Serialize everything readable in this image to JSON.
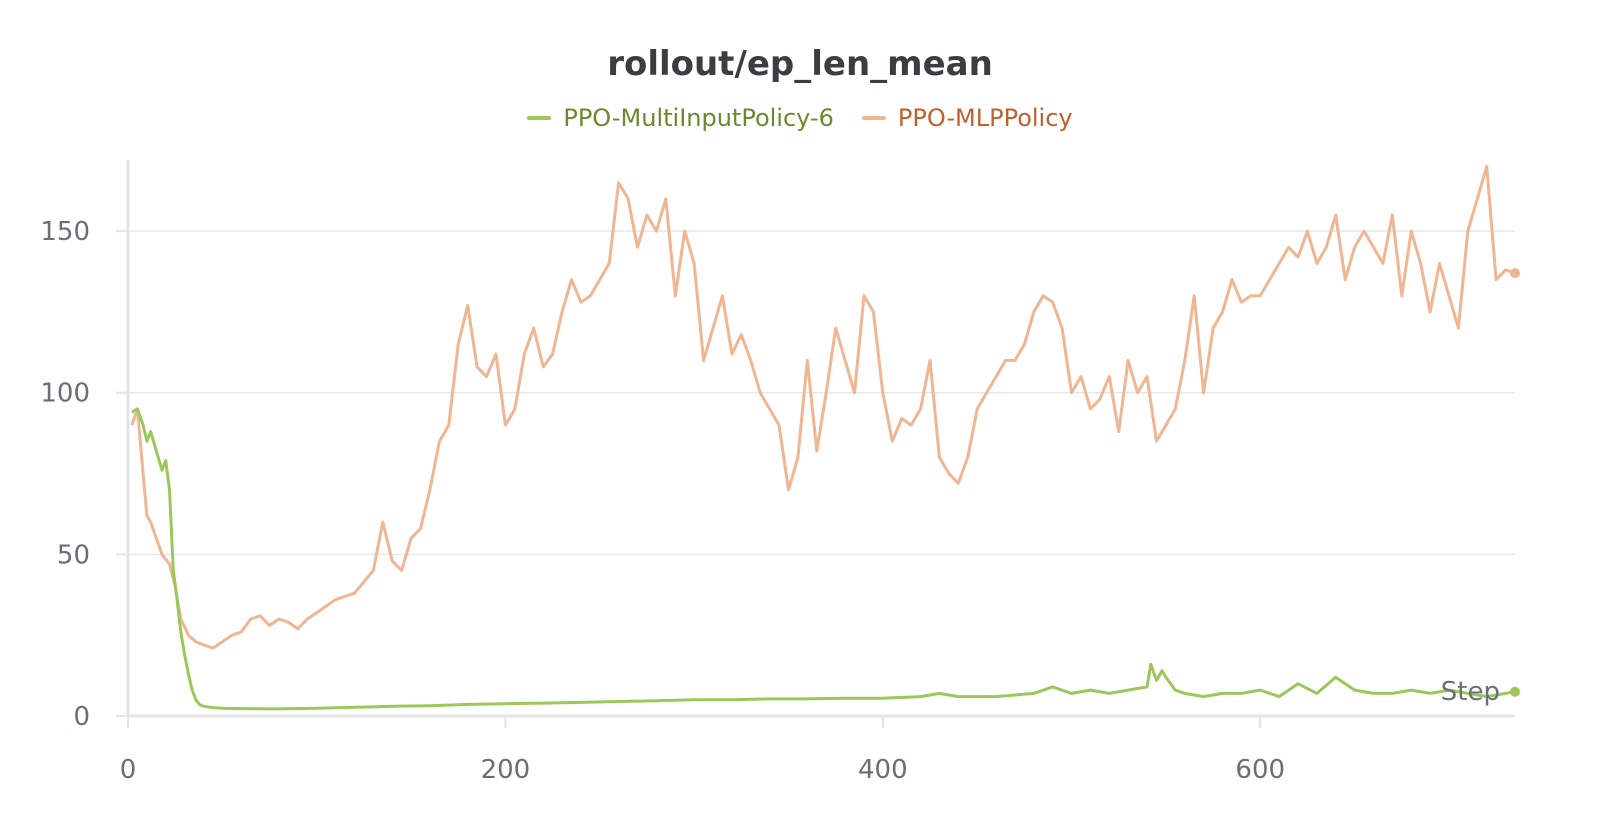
{
  "chart_data": {
    "type": "line",
    "title": "rollout/ep_len_mean",
    "xlabel": "Step",
    "ylabel": "",
    "xlim": [
      0,
      735
    ],
    "ylim": [
      0,
      172
    ],
    "xticks": [
      0,
      200,
      400,
      600
    ],
    "yticks": [
      0,
      50,
      100,
      150
    ],
    "grid": true,
    "legend_position": "top-center",
    "series": [
      {
        "name": "PPO-MultiInputPolicy-6",
        "color": "#9cc75a",
        "text_color": "#6a8a2e",
        "x": [
          2,
          5,
          8,
          10,
          12,
          14,
          16,
          18,
          20,
          22,
          24,
          26,
          28,
          30,
          32,
          34,
          36,
          38,
          40,
          45,
          50,
          60,
          80,
          100,
          120,
          140,
          160,
          180,
          200,
          220,
          240,
          260,
          280,
          300,
          320,
          340,
          360,
          380,
          400,
          420,
          430,
          440,
          460,
          480,
          490,
          500,
          510,
          520,
          530,
          540,
          542,
          545,
          548,
          550,
          555,
          560,
          570,
          580,
          590,
          600,
          610,
          620,
          630,
          640,
          650,
          660,
          670,
          680,
          690,
          700,
          710,
          720,
          730,
          735
        ],
        "values": [
          94,
          95,
          90,
          85,
          88,
          84,
          80,
          76,
          79,
          70,
          45,
          36,
          26,
          19,
          13,
          8,
          5,
          3.5,
          3,
          2.6,
          2.4,
          2.3,
          2.2,
          2.4,
          2.7,
          3,
          3.2,
          3.6,
          3.8,
          4,
          4.2,
          4.5,
          4.7,
          5,
          5,
          5.3,
          5.3,
          5.5,
          5.5,
          6,
          7,
          6,
          6,
          7,
          9,
          7,
          8,
          7,
          8,
          9,
          16,
          11,
          14,
          12,
          8,
          7,
          6,
          7,
          7,
          8,
          6,
          10,
          7,
          12,
          8,
          7,
          7,
          8,
          7,
          8,
          7,
          6,
          7,
          7.5
        ]
      },
      {
        "name": "PPO-MLPPolicy",
        "color": "#f0b593",
        "text_color": "#c0602e",
        "x": [
          2,
          5,
          8,
          10,
          12,
          15,
          18,
          22,
          25,
          28,
          32,
          36,
          40,
          45,
          50,
          55,
          60,
          65,
          70,
          75,
          80,
          85,
          90,
          95,
          100,
          110,
          120,
          130,
          135,
          140,
          145,
          150,
          155,
          160,
          165,
          170,
          175,
          180,
          185,
          190,
          195,
          200,
          205,
          210,
          215,
          220,
          225,
          230,
          235,
          240,
          245,
          250,
          255,
          260,
          265,
          270,
          275,
          280,
          285,
          290,
          295,
          300,
          305,
          310,
          315,
          320,
          325,
          330,
          335,
          340,
          345,
          350,
          355,
          360,
          365,
          370,
          375,
          380,
          385,
          390,
          395,
          400,
          405,
          410,
          415,
          420,
          425,
          430,
          435,
          440,
          445,
          450,
          455,
          460,
          465,
          470,
          475,
          480,
          485,
          490,
          495,
          500,
          505,
          510,
          515,
          520,
          525,
          530,
          535,
          540,
          545,
          550,
          555,
          560,
          565,
          570,
          575,
          580,
          585,
          590,
          595,
          600,
          605,
          610,
          615,
          620,
          625,
          630,
          635,
          640,
          645,
          650,
          655,
          660,
          665,
          670,
          675,
          680,
          685,
          690,
          695,
          700,
          705,
          710,
          715,
          720,
          725,
          730,
          735
        ],
        "values": [
          90,
          95,
          75,
          62,
          60,
          55,
          50,
          47,
          40,
          30,
          25,
          23,
          22,
          21,
          23,
          25,
          26,
          30,
          31,
          28,
          30,
          29,
          27,
          30,
          32,
          36,
          38,
          45,
          60,
          48,
          45,
          55,
          58,
          70,
          85,
          90,
          115,
          127,
          108,
          105,
          112,
          90,
          95,
          112,
          120,
          108,
          112,
          125,
          135,
          128,
          130,
          135,
          140,
          165,
          160,
          145,
          155,
          150,
          160,
          130,
          150,
          140,
          110,
          120,
          130,
          112,
          118,
          110,
          100,
          95,
          90,
          70,
          80,
          110,
          82,
          100,
          120,
          110,
          100,
          130,
          125,
          100,
          85,
          92,
          90,
          95,
          110,
          80,
          75,
          72,
          80,
          95,
          100,
          105,
          110,
          110,
          115,
          125,
          130,
          128,
          120,
          100,
          105,
          95,
          98,
          105,
          88,
          110,
          100,
          105,
          85,
          90,
          95,
          110,
          130,
          100,
          120,
          125,
          135,
          128,
          130,
          130,
          135,
          140,
          145,
          142,
          150,
          140,
          145,
          155,
          135,
          145,
          150,
          145,
          140,
          155,
          130,
          150,
          140,
          125,
          140,
          130,
          120,
          150,
          160,
          170,
          135,
          138,
          137
        ]
      }
    ]
  }
}
